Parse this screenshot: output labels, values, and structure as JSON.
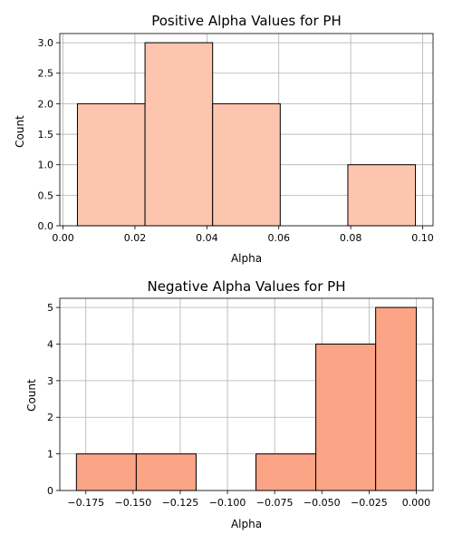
{
  "chart_data": [
    {
      "type": "bar",
      "title": "Positive Alpha Values for PH",
      "xlabel": "Alpha",
      "ylabel": "Count",
      "bin_edges": [
        0.004,
        0.0228,
        0.0416,
        0.0604,
        0.0792,
        0.098
      ],
      "values": [
        2,
        3,
        2,
        0,
        1
      ],
      "xlim": [
        -0.0009,
        0.1029
      ],
      "ylim": [
        0,
        3.15
      ],
      "xticks": [
        0.0,
        0.02,
        0.04,
        0.06,
        0.08,
        0.1
      ],
      "xtick_labels": [
        "0.00",
        "0.02",
        "0.04",
        "0.06",
        "0.08",
        "0.10"
      ],
      "yticks": [
        0.0,
        0.5,
        1.0,
        1.5,
        2.0,
        2.5,
        3.0
      ],
      "ytick_labels": [
        "0.0",
        "0.5",
        "1.0",
        "1.5",
        "2.0",
        "2.5",
        "3.0"
      ],
      "grid": true,
      "color": "#fdc4ae",
      "edge_color": "#000000"
    },
    {
      "type": "bar",
      "title": "Negative Alpha Values for PH",
      "xlabel": "Alpha",
      "ylabel": "Count",
      "bin_edges": [
        -0.18,
        -0.1483,
        -0.1166,
        -0.0849,
        -0.0532,
        -0.0215,
        0.0
      ],
      "values": [
        1,
        1,
        0,
        1,
        4,
        5
      ],
      "xlim": [
        -0.1888,
        0.0089
      ],
      "ylim": [
        0,
        5.25
      ],
      "xticks": [
        -0.175,
        -0.15,
        -0.125,
        -0.1,
        -0.075,
        -0.05,
        -0.025,
        0.0
      ],
      "xtick_labels": [
        "−0.175",
        "−0.150",
        "−0.125",
        "−0.100",
        "−0.075",
        "−0.050",
        "−0.025",
        "0.000"
      ],
      "yticks": [
        0,
        1,
        2,
        3,
        4,
        5
      ],
      "ytick_labels": [
        "0",
        "1",
        "2",
        "3",
        "4",
        "5"
      ],
      "grid": true,
      "color": "#fca486",
      "edge_color": "#000000"
    }
  ]
}
